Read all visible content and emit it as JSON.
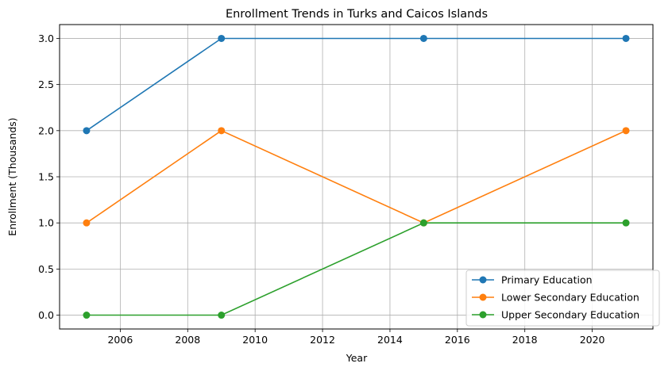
{
  "chart_data": {
    "type": "line",
    "title": "Enrollment Trends in Turks and Caicos Islands",
    "xlabel": "Year",
    "ylabel": "Enrollment (Thousands)",
    "x": [
      2005,
      2009,
      2015,
      2021
    ],
    "xlim": [
      2004.2,
      2021.8
    ],
    "ylim": [
      -0.15,
      3.15
    ],
    "xticks": [
      2006,
      2008,
      2010,
      2012,
      2014,
      2016,
      2018,
      2020
    ],
    "yticks": [
      0.0,
      0.5,
      1.0,
      1.5,
      2.0,
      2.5,
      3.0
    ],
    "xtick_labels": [
      "2006",
      "2008",
      "2010",
      "2012",
      "2014",
      "2016",
      "2018",
      "2020"
    ],
    "ytick_labels": [
      "0.0",
      "0.5",
      "1.0",
      "1.5",
      "2.0",
      "2.5",
      "3.0"
    ],
    "grid": true,
    "legend_position": "bottom-right",
    "series": [
      {
        "name": "Primary Education",
        "values": [
          2,
          3,
          3,
          3
        ],
        "color": "#1f77b4"
      },
      {
        "name": "Lower Secondary Education",
        "values": [
          1,
          2,
          1,
          2
        ],
        "color": "#ff7f0e"
      },
      {
        "name": "Upper Secondary Education",
        "values": [
          0,
          0,
          1,
          1
        ],
        "color": "#2ca02c"
      }
    ]
  }
}
